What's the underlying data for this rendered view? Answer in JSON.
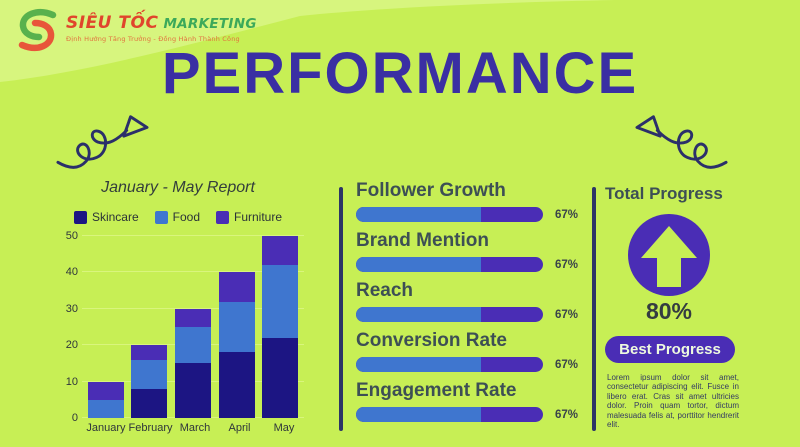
{
  "logo": {
    "brand_primary": "SIÊU TỐC",
    "brand_secondary": "MARKETING",
    "tagline": "Định Hướng Tăng Trưởng - Đồng Hành Thành Công"
  },
  "title": "PERFORMANCE",
  "report": {
    "title": "January - May Report",
    "legend": [
      {
        "label": "Skincare",
        "color": "#1c1583"
      },
      {
        "label": "Food",
        "color": "#3f76cf"
      },
      {
        "label": "Furniture",
        "color": "#4a2db5"
      }
    ]
  },
  "chart_data": {
    "type": "bar",
    "stacked": true,
    "title": "January - May Report",
    "categories": [
      "January",
      "February",
      "March",
      "April",
      "May"
    ],
    "series": [
      {
        "name": "Skincare",
        "color": "#1c1583",
        "values": [
          0,
          8,
          15,
          18,
          22
        ]
      },
      {
        "name": "Food",
        "color": "#3f76cf",
        "values": [
          5,
          8,
          10,
          14,
          20
        ]
      },
      {
        "name": "Furniture",
        "color": "#4a2db5",
        "values": [
          5,
          4,
          5,
          8,
          8
        ]
      }
    ],
    "totals": [
      10,
      20,
      30,
      40,
      50
    ],
    "xlabel": "",
    "ylabel": "",
    "ylim": [
      0,
      50
    ],
    "yticks": [
      0,
      10,
      20,
      30,
      40,
      50
    ],
    "grid": true,
    "legend_position": "top"
  },
  "metrics": {
    "items": [
      {
        "label": "Follower Growth",
        "value": 67,
        "display": "67%"
      },
      {
        "label": "Brand Mention",
        "value": 67,
        "display": "67%"
      },
      {
        "label": "Reach",
        "value": 67,
        "display": "67%"
      },
      {
        "label": "Conversion Rate",
        "value": 67,
        "display": "67%"
      },
      {
        "label": "Engagement Rate",
        "value": 67,
        "display": "67%"
      }
    ]
  },
  "total": {
    "heading": "Total Progress",
    "percent": "80%",
    "button_label": "Best Progress",
    "description": "Lorem ipsum dolor sit amet, consectetur adipiscing elit. Fusce in libero erat. Cras sit amet ultricies dolor. Proin quam tortor, dictum malesuada felis at, porttitor hendrerit elit."
  },
  "colors": {
    "background": "#c7ef55",
    "band": "#d7f57e",
    "title": "#3a2fa3",
    "navy": "#1c1583",
    "blue": "#3f76cf",
    "purple": "#4a2db5",
    "divider": "#2c3566",
    "doodle": "#2b2f6a"
  }
}
